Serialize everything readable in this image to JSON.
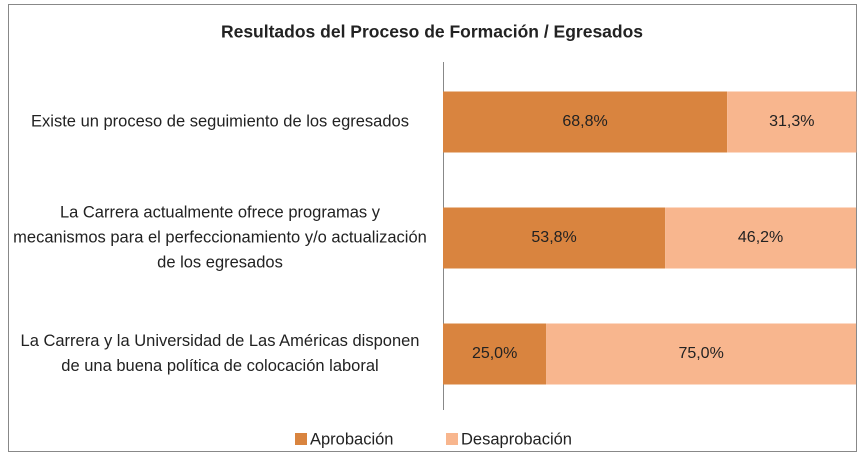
{
  "chart_data": {
    "type": "stacked-barh",
    "title": "Resultados del Proceso de Formación / Egresados",
    "categories": [
      "Existe un proceso de seguimiento de los egresados",
      "La Carrera actualmente ofrece programas y mecanismos para el perfeccionamiento y/o actualización de los egresados",
      "La Carrera y la Universidad de Las Américas disponen de una buena política de colocación laboral"
    ],
    "series": [
      {
        "name": "Aprobación",
        "color": "#d9843f",
        "values": [
          68.8,
          53.8,
          25.0
        ],
        "value_labels": [
          "68,8%",
          "53,8%",
          "25,0%"
        ]
      },
      {
        "name": "Desaprobación",
        "color": "#f8b68e",
        "values": [
          31.3,
          46.2,
          75.0
        ],
        "value_labels": [
          "31,3%",
          "46,2%",
          "75,0%"
        ]
      }
    ],
    "xlim": [
      0,
      100
    ],
    "legend": "bottom"
  }
}
